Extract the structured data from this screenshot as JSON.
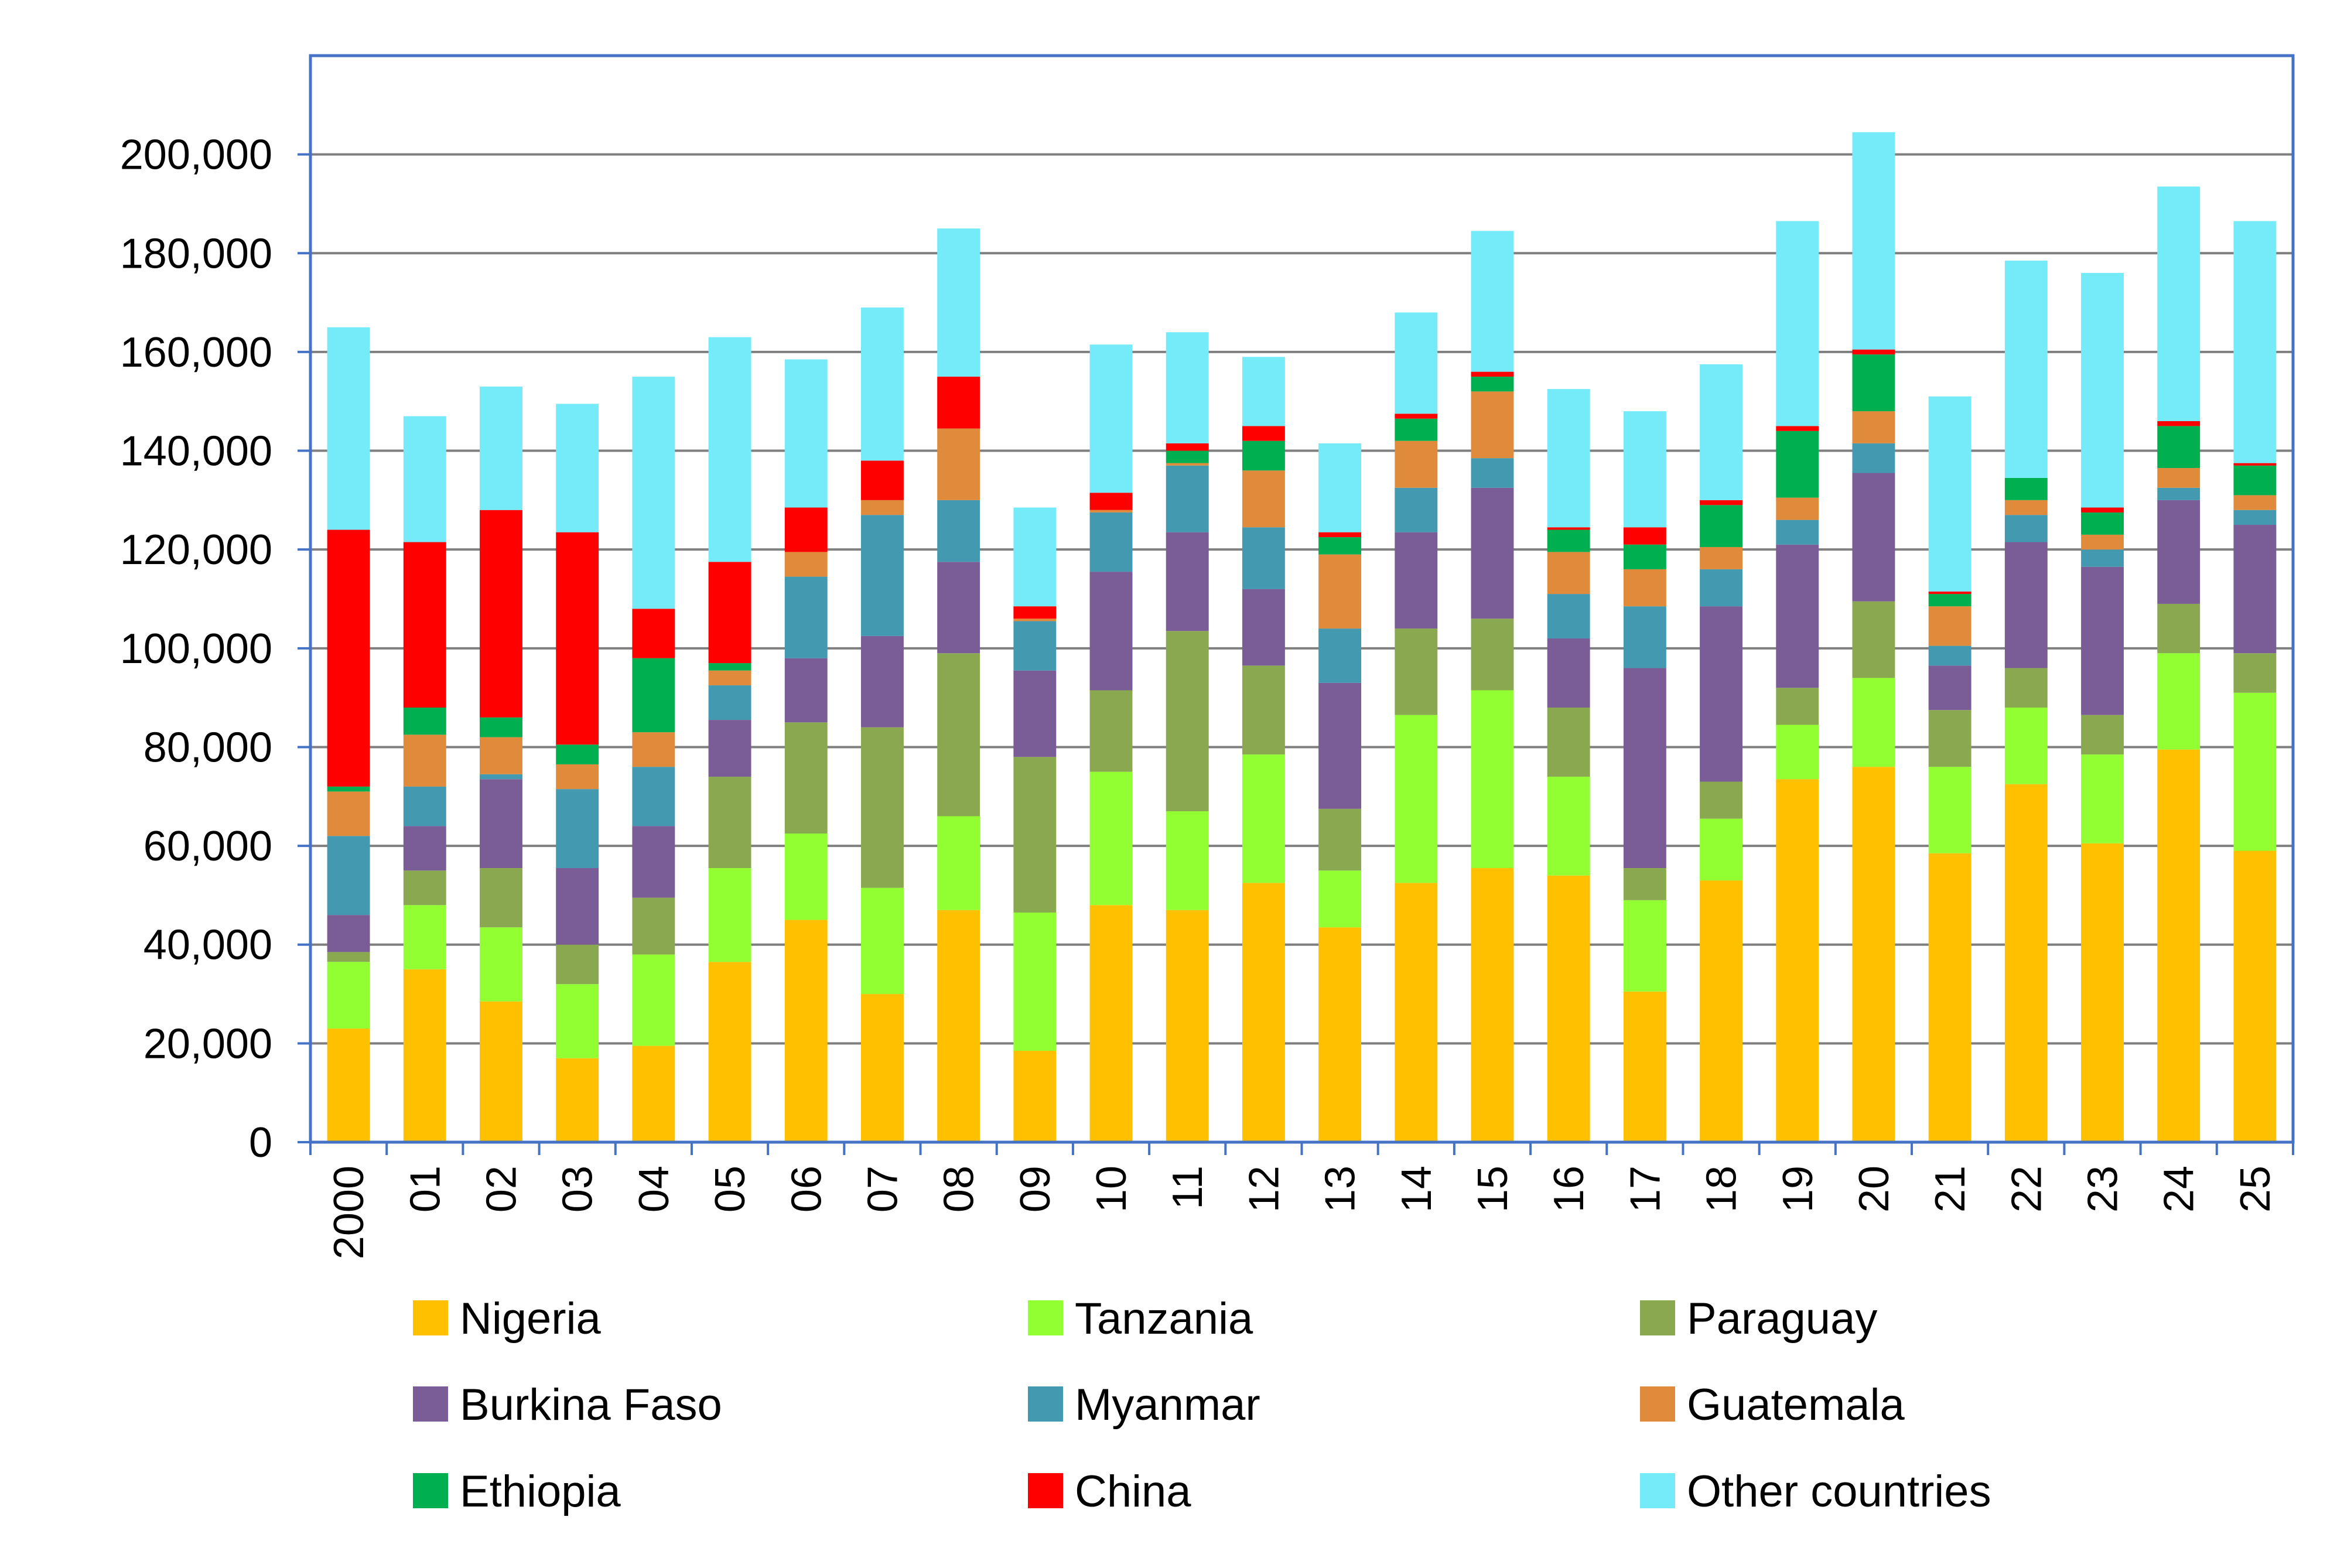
{
  "chart_data": {
    "type": "bar",
    "stacked": true,
    "title": "",
    "xlabel": "",
    "ylabel": "",
    "ylim": [
      0,
      220000
    ],
    "yticks": [
      0,
      20000,
      40000,
      60000,
      80000,
      100000,
      120000,
      140000,
      160000,
      180000,
      200000
    ],
    "ytick_labels": [
      "0",
      "20,000",
      "40,000",
      "60,000",
      "80,000",
      "100,000",
      "120,000",
      "140,000",
      "160,000",
      "180,000",
      "200,000"
    ],
    "grid": true,
    "legend_position": "bottom",
    "categories": [
      "2000",
      "01",
      "02",
      "03",
      "04",
      "05",
      "06",
      "07",
      "08",
      "09",
      "10",
      "11",
      "12",
      "13",
      "14",
      "15",
      "16",
      "17",
      "18",
      "19",
      "20",
      "21",
      "22",
      "23",
      "24",
      "25"
    ],
    "series": [
      {
        "name": "Nigeria",
        "color": "#FFC000",
        "values": [
          23000,
          35000,
          28500,
          17000,
          19500,
          36500,
          45000,
          30000,
          47000,
          18500,
          48000,
          47000,
          52500,
          43500,
          52500,
          55500,
          54000,
          30500,
          53000,
          73500,
          76000,
          58500,
          72500,
          60500,
          79500,
          59000
        ]
      },
      {
        "name": "Tanzania",
        "color": "#92FF33",
        "values": [
          13500,
          13000,
          15000,
          15000,
          18500,
          19000,
          17500,
          21500,
          19000,
          28000,
          27000,
          20000,
          26000,
          11500,
          34000,
          36000,
          20000,
          18500,
          12500,
          11000,
          18000,
          17500,
          15500,
          18000,
          19500,
          32000
        ]
      },
      {
        "name": "Paraguay",
        "color": "#8AA84F",
        "values": [
          2000,
          7000,
          12000,
          8000,
          11500,
          18500,
          22500,
          32500,
          33000,
          31500,
          16500,
          36500,
          18000,
          12500,
          17500,
          14500,
          14000,
          6500,
          7500,
          7500,
          15500,
          11500,
          8000,
          8000,
          10000,
          8000
        ]
      },
      {
        "name": "Burkina Faso",
        "color": "#7A5C96",
        "values": [
          7500,
          9000,
          18000,
          15500,
          14500,
          11500,
          13000,
          18500,
          18500,
          17500,
          24000,
          20000,
          15500,
          25500,
          19500,
          26500,
          14000,
          40500,
          35500,
          29000,
          26000,
          9000,
          25500,
          30000,
          21000,
          26000
        ]
      },
      {
        "name": "Myanmar",
        "color": "#4299B0",
        "values": [
          16000,
          8000,
          1000,
          16000,
          12000,
          7000,
          16500,
          24500,
          12500,
          10000,
          12000,
          13500,
          12500,
          11000,
          9000,
          6000,
          9000,
          12500,
          7500,
          5000,
          6000,
          4000,
          5500,
          3500,
          2500,
          3000
        ]
      },
      {
        "name": "Guatemala",
        "color": "#E08A3C",
        "values": [
          9000,
          10500,
          7500,
          5000,
          7000,
          3000,
          5000,
          3000,
          14500,
          500,
          500,
          500,
          11500,
          15000,
          9500,
          13500,
          8500,
          7500,
          4500,
          4500,
          6500,
          8000,
          3000,
          3000,
          4000,
          3000
        ]
      },
      {
        "name": "Ethiopia",
        "color": "#00B050",
        "values": [
          1000,
          5500,
          4000,
          4000,
          15000,
          1500,
          0,
          0,
          0,
          0,
          0,
          2500,
          6000,
          3500,
          4500,
          3000,
          4500,
          5000,
          8500,
          13500,
          11500,
          2500,
          4500,
          4500,
          8500,
          6000
        ]
      },
      {
        "name": "China",
        "color": "#FF0000",
        "values": [
          52000,
          33500,
          42000,
          43000,
          10000,
          20500,
          9000,
          8000,
          10500,
          2500,
          3500,
          1500,
          3000,
          1000,
          1000,
          1000,
          500,
          3500,
          1000,
          1000,
          1000,
          500,
          0,
          1000,
          1000,
          500
        ]
      },
      {
        "name": "Other countries",
        "color": "#75EBFA",
        "values": [
          41000,
          25500,
          25000,
          26000,
          47000,
          45500,
          30000,
          31000,
          30000,
          20000,
          30000,
          22500,
          14000,
          18000,
          20500,
          28500,
          28000,
          23500,
          27500,
          41500,
          44000,
          39500,
          44000,
          47500,
          47500,
          49000
        ]
      }
    ]
  }
}
